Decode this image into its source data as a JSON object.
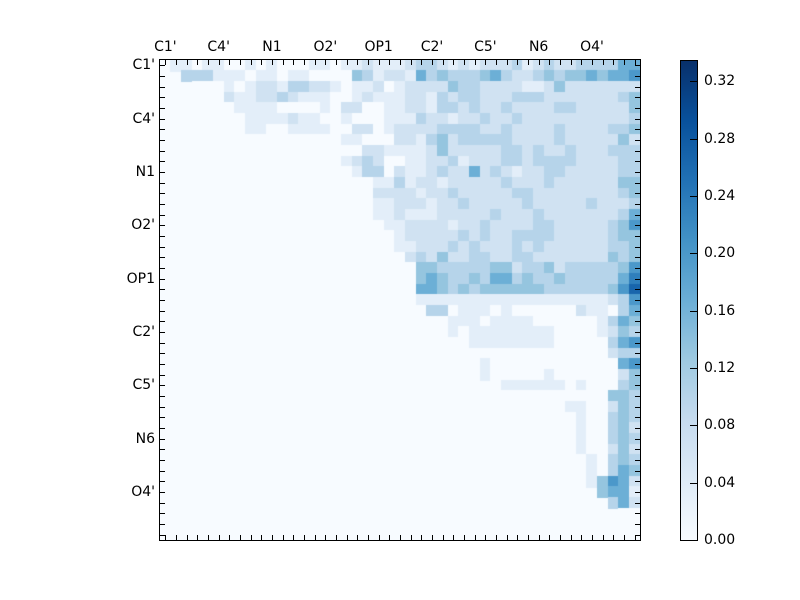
{
  "chart_data": {
    "type": "heatmap",
    "title": "",
    "xlabel": "",
    "ylabel": "",
    "n": 45,
    "x_tick_labels": [
      "C1'",
      "C4'",
      "N1",
      "O2'",
      "OP1",
      "C2'",
      "C5'",
      "N6",
      "O4'"
    ],
    "y_tick_labels": [
      "C1'",
      "C4'",
      "N1",
      "O2'",
      "OP1",
      "C2'",
      "C5'",
      "N6",
      "O4'"
    ],
    "tick_label_every": 5,
    "colormap": "Blues",
    "colorbar": {
      "min": 0.0,
      "max": 0.335,
      "ticks": [
        "0.00",
        "0.04",
        "0.08",
        "0.12",
        "0.16",
        "0.20",
        "0.24",
        "0.28",
        "0.32"
      ]
    },
    "value_scale_note": "rows encoded as digit strings, value = digit/9 * 0.30, '.' = below diagonal (0)",
    "rows": [
      ".1101100101000110112111233212122231232233335564",
      "..333111011011000043122153433345322343445455653",
      "...000101221332210112012222433222211242222222226",
      "....00211223211100121112213233222333222222234357",
      ".....0011110000102200112213323223222233222224464",
      "......001111211001000111322122322322222222223443",
      ".......0110011110022012222333322322223222233446",
      "........000000000110002213423333322223222224263",
      ".........0000000000221111242222233232232223332463",
      "..........00000001232001122312223323333222233342",
      "...........000000013302112322523212233222223344",
      "............00000000113122122222322232222224423",
      ".............0000000222212232222233222222223443",
      "..............000000112221223222223222223222344",
      "...............0000011211122222322232222222354",
      "................000001122221223222233222223463",
      ".................00000122222323223333222223444",
      "..................0000112223232223232222223345",
      "...................000023242233223322222224344",
      "....................00004433333442334233333466",
      ".....................0004543343553433433333576",
      "......................005543434444443333334687",
      ".......................01111111111111111112365",
      "........................0330111010000002110354",
      ".........................00111011110000001354",
      "..........................0101111111100001243",
      "...........................0011111111000003563",
      "............................000000000000002333",
      ".............................01000000000000563",
      "..............................10000010000002460",
      "...............................011111101000343",
      "................................0000000000443",
      ".................................000001100243",
      "..................................00000100343",
      "...................................0000100342",
      "....................................000100343",
      ".....................................00100242",
      "......................................0010343",
      ".......................................010354",
      "........................................14652",
      ".........................................4551",
      "..........................................352",
      "...........................................00",
      "............................................0",
      "............................................."
    ]
  },
  "axes": {
    "x_ticks": [
      "C1'",
      "C4'",
      "N1",
      "O2'",
      "OP1",
      "C2'",
      "C5'",
      "N6",
      "O4'"
    ],
    "y_ticks": [
      "C1'",
      "C4'",
      "N1",
      "O2'",
      "OP1",
      "C2'",
      "C5'",
      "N6",
      "O4'"
    ]
  },
  "colorbar": {
    "labels": [
      "0.32",
      "0.28",
      "0.24",
      "0.20",
      "0.16",
      "0.12",
      "0.08",
      "0.04",
      "0.00"
    ]
  }
}
